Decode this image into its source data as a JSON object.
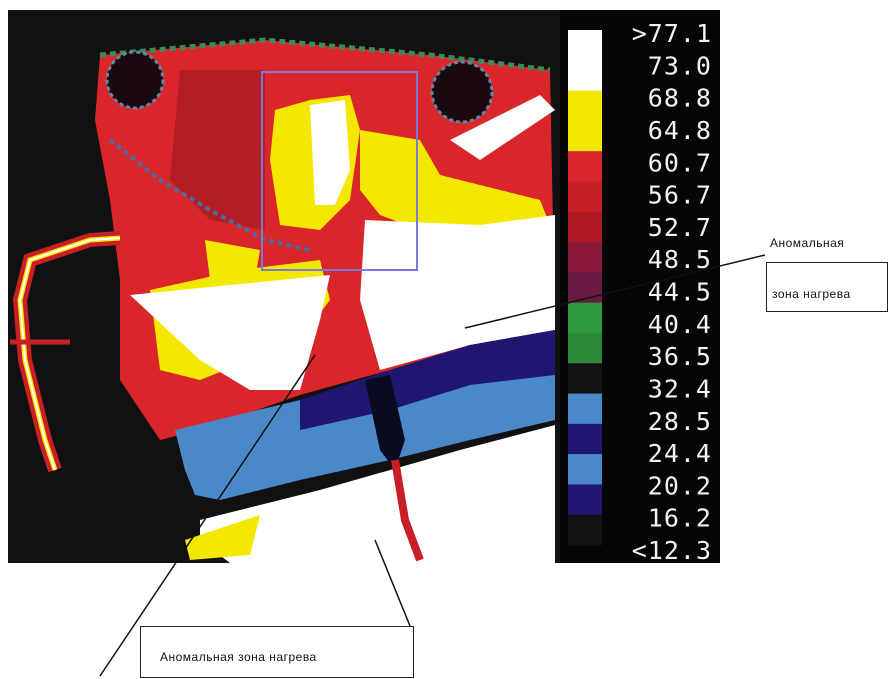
{
  "image": {
    "description_free": true,
    "palette": {
      "background": "#111111",
      "red": "#d8262a",
      "dark_red": "#a01822",
      "yellow": "#f5e800",
      "white": "#ffffff",
      "navy": "#1e1670",
      "steel_blue": "#4a88c8",
      "green": "#2d9a3d",
      "maroon": "#5a1520"
    }
  },
  "color_scale": {
    "labels": [
      ">77.1",
      "73.0",
      "68.8",
      "64.8",
      "60.7",
      "56.7",
      "52.7",
      "48.5",
      "44.5",
      "40.4",
      "36.5",
      "32.4",
      "28.5",
      "24.4",
      "20.2",
      "16.2",
      "<12.3"
    ],
    "swatches": [
      "#ffffff",
      "#ffffff",
      "#f5e800",
      "#f5e800",
      "#d8262a",
      "#c81e26",
      "#b01822",
      "#8a1a3a",
      "#6a1a40",
      "#2d9a3d",
      "#2a8a3a",
      "#111111",
      "#4a88c8",
      "#1e1670",
      "#4a88c8",
      "#1e1670",
      "#111111"
    ]
  },
  "callouts": {
    "right_line1": "Аномальная",
    "right_line2": "зона нагрева",
    "bottom": "Аномальная зона нагрева"
  }
}
